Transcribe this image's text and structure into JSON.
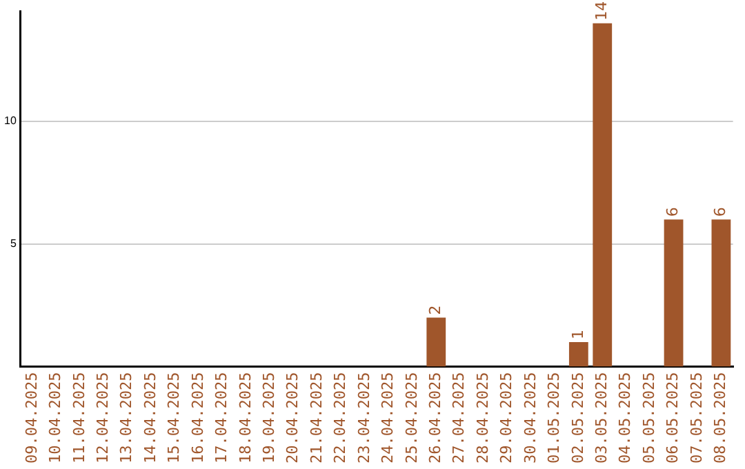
{
  "chart_data": {
    "type": "bar",
    "categories": [
      "09.04.2025",
      "10.04.2025",
      "11.04.2025",
      "12.04.2025",
      "13.04.2025",
      "14.04.2025",
      "15.04.2025",
      "16.04.2025",
      "17.04.2025",
      "18.04.2025",
      "19.04.2025",
      "20.04.2025",
      "21.04.2025",
      "22.04.2025",
      "23.04.2025",
      "24.04.2025",
      "25.04.2025",
      "26.04.2025",
      "27.04.2025",
      "28.04.2025",
      "29.04.2025",
      "30.04.2025",
      "01.05.2025",
      "02.05.2025",
      "03.05.2025",
      "04.05.2025",
      "05.05.2025",
      "06.05.2025",
      "07.05.2025",
      "08.05.2025"
    ],
    "values": [
      0,
      0,
      0,
      0,
      0,
      0,
      0,
      0,
      0,
      0,
      0,
      0,
      0,
      0,
      0,
      0,
      0,
      2,
      0,
      0,
      0,
      0,
      0,
      1,
      14,
      0,
      0,
      6,
      0,
      6
    ],
    "value_labels": [
      null,
      null,
      null,
      null,
      null,
      null,
      null,
      null,
      null,
      null,
      null,
      null,
      null,
      null,
      null,
      null,
      null,
      "2",
      null,
      null,
      null,
      null,
      null,
      "1",
      "14",
      null,
      null,
      "6",
      null,
      "6"
    ],
    "color": "#a0562b",
    "ylim": [
      0,
      14.5
    ],
    "yticks": [
      5,
      10
    ],
    "grid": "y",
    "legend": false
  }
}
